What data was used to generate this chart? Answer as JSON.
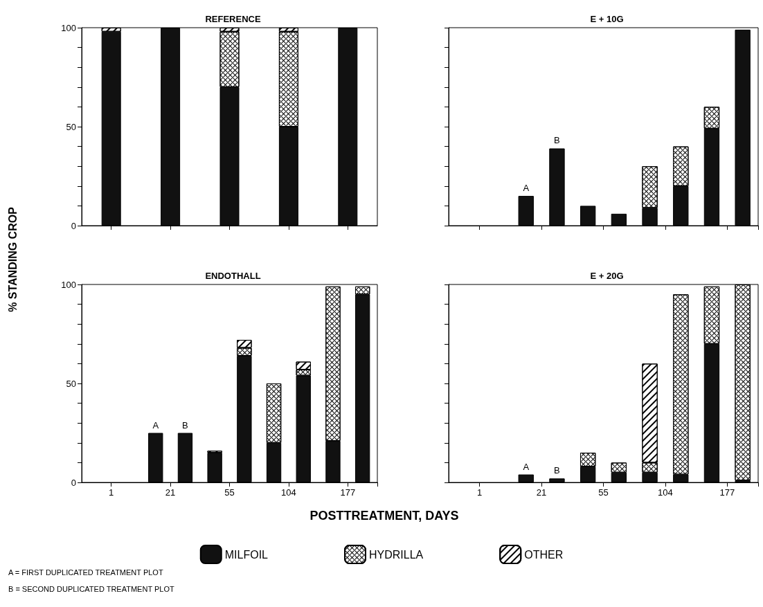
{
  "chart_data": [
    {
      "type": "bar",
      "title": "REFERENCE",
      "ylabel": "% STANDING CROP",
      "stacked": true,
      "tick_labels": "y",
      "categories": [
        null,
        null,
        null,
        null,
        null
      ],
      "ylim": [
        0,
        100
      ],
      "yticks": [
        0,
        {
          "value": 10,
          "label": null
        },
        {
          "value": 20,
          "label": null
        },
        {
          "value": 30,
          "label": null
        },
        {
          "value": 40,
          "label": null
        },
        50,
        {
          "value": 60,
          "label": null
        },
        {
          "value": 70,
          "label": null
        },
        {
          "value": 80,
          "label": null
        },
        {
          "value": 90,
          "label": null
        },
        100
      ],
      "series": [
        {
          "color": "#111111",
          "values": [
            98,
            100,
            70,
            50,
            100
          ]
        },
        {
          "color": "#ffffff",
          "values": [
            null,
            null,
            28,
            48,
            null
          ]
        },
        {
          "color": "#ffffff",
          "values": [
            2,
            null,
            2,
            2,
            null
          ]
        }
      ]
    },
    {
      "type": "bar",
      "title": "E + 10G",
      "stacked": true,
      "tick_labels": false,
      "categories": [
        "1",
        null,
        "21",
        null,
        "55",
        null,
        "104",
        null,
        "177",
        null
      ],
      "ylim": [
        0,
        100
      ],
      "yticks": [
        0,
        {
          "value": 10,
          "label": null
        },
        {
          "value": 20,
          "label": null
        },
        {
          "value": 30,
          "label": null
        },
        {
          "value": 40,
          "label": null
        },
        50,
        {
          "value": 60,
          "label": null
        },
        {
          "value": 70,
          "label": null
        },
        {
          "value": 80,
          "label": null
        },
        {
          "value": 90,
          "label": null
        },
        100
      ],
      "series": [
        {
          "color": "#111111",
          "values": [
            null,
            null,
            15,
            39,
            10,
            6,
            9,
            20,
            49,
            99
          ],
          "value_labels": [
            null,
            null,
            "A",
            "B",
            null,
            null,
            null,
            null,
            null,
            null
          ]
        },
        {
          "color": "#ffffff",
          "values": [
            null,
            null,
            null,
            null,
            null,
            null,
            21,
            20,
            11,
            null
          ]
        }
      ]
    },
    {
      "type": "bar",
      "title": "ENDOTHALL",
      "xlabel": "POSTTREATMENT, DAYS",
      "stacked": true,
      "legend": "bottom",
      "annotations": [
        "A = FIRST DUPLICATED TREATMENT PLOT",
        "B = SECOND DUPLICATED TREATMENT PLOT"
      ],
      "categories": [
        "1",
        null,
        "21",
        null,
        "55",
        null,
        "104",
        null,
        "177",
        null
      ],
      "ylim": [
        0,
        100
      ],
      "yticks": [
        0,
        {
          "value": 10,
          "label": null
        },
        {
          "value": 20,
          "label": null
        },
        {
          "value": 30,
          "label": null
        },
        {
          "value": 40,
          "label": null
        },
        50,
        {
          "value": 60,
          "label": null
        },
        {
          "value": 70,
          "label": null
        },
        {
          "value": 80,
          "label": null
        },
        {
          "value": 90,
          "label": null
        },
        100
      ],
      "series": [
        {
          "name": "MILFOIL",
          "color": "#111111",
          "values": [
            null,
            null,
            25,
            25,
            15,
            64,
            20,
            54,
            21,
            95
          ],
          "value_labels": [
            null,
            null,
            "A",
            "B",
            null,
            null,
            null,
            null,
            null,
            null
          ]
        },
        {
          "name": "HYDRILLA",
          "color": "#ffffff",
          "values": [
            null,
            null,
            null,
            null,
            null,
            4,
            30,
            3,
            78,
            4
          ]
        },
        {
          "name": "OTHER",
          "color": "#ffffff",
          "values": [
            null,
            null,
            null,
            null,
            1,
            4,
            null,
            4,
            null,
            null
          ]
        }
      ]
    },
    {
      "type": "bar",
      "title": "E + 20G",
      "stacked": true,
      "tick_labels": "x",
      "categories": [
        "1",
        null,
        "21",
        null,
        "55",
        null,
        "104",
        null,
        "177",
        null
      ],
      "ylim": [
        0,
        100
      ],
      "yticks": [
        0,
        {
          "value": 10,
          "label": null
        },
        {
          "value": 20,
          "label": null
        },
        {
          "value": 30,
          "label": null
        },
        {
          "value": 40,
          "label": null
        },
        50,
        {
          "value": 60,
          "label": null
        },
        {
          "value": 70,
          "label": null
        },
        {
          "value": 80,
          "label": null
        },
        {
          "value": 90,
          "label": null
        },
        100
      ],
      "series": [
        {
          "color": "#111111",
          "values": [
            null,
            null,
            4,
            2,
            8,
            5,
            5,
            4,
            70,
            1
          ],
          "value_labels": [
            null,
            null,
            "A",
            "B",
            null,
            null,
            null,
            null,
            null,
            null
          ]
        },
        {
          "color": "#ffffff",
          "values": [
            null,
            null,
            null,
            null,
            7,
            5,
            5,
            91,
            29,
            99
          ]
        },
        {
          "color": "#ffffff",
          "values": [
            null,
            null,
            null,
            null,
            null,
            null,
            50,
            null,
            null,
            null
          ]
        }
      ]
    }
  ]
}
